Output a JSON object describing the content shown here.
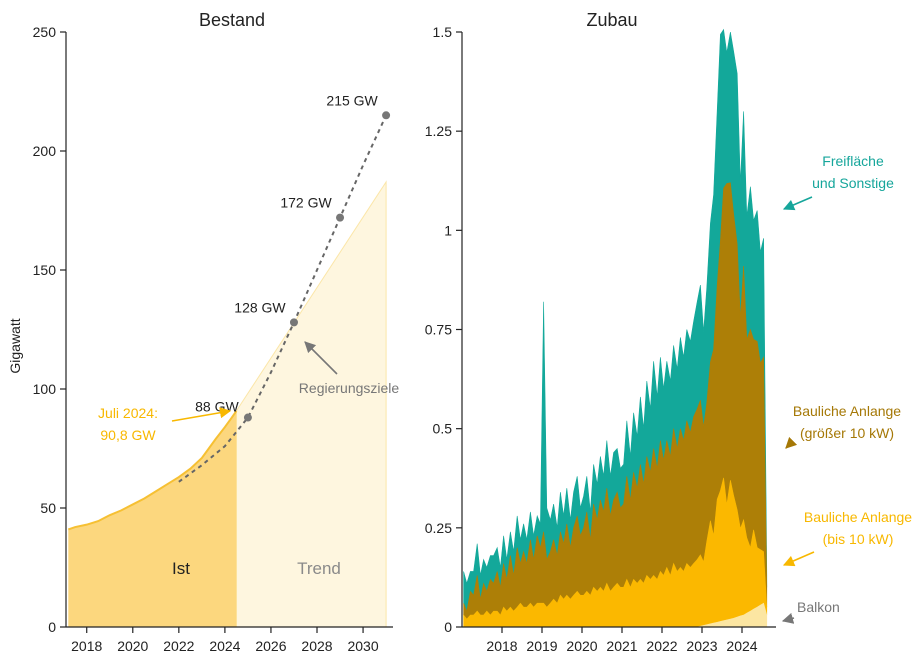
{
  "colors": {
    "ist": "#FCD77E",
    "trend": "#FEF6DF",
    "trend_edge": "#FBE6A8",
    "ist_line": "#F6C033",
    "target": "#666666",
    "freiflaeche": "#13A89A",
    "baulich_gross": "#AD7F07",
    "baulich_klein": "#FBB800",
    "balkon": "#FCE6A2",
    "ann_teal": "#16A69B",
    "ann_brown": "#A57806",
    "ann_yellow": "#F8B800",
    "ann_gray": "#777777"
  },
  "chart_data": [
    {
      "type": "area",
      "title": "Bestand",
      "ylabel": "Gigawatt",
      "xlabel": "",
      "xlim": [
        2017.1,
        2031.3
      ],
      "ylim": [
        0,
        250
      ],
      "x_ticks": [
        "2018",
        "2020",
        "2022",
        "2024",
        "2026",
        "2028",
        "2030"
      ],
      "y_ticks": [
        "0",
        "50",
        "100",
        "150",
        "200",
        "250"
      ],
      "series": [
        {
          "name": "Ist",
          "x": [
            2017.2,
            2017.5,
            2018.0,
            2018.5,
            2018.8,
            2019.0,
            2019.5,
            2020.0,
            2020.5,
            2021.0,
            2021.5,
            2022.0,
            2022.5,
            2023.0,
            2023.3,
            2023.6,
            2024.0,
            2024.3,
            2024.5
          ],
          "values": [
            41,
            42,
            43,
            44.5,
            46,
            47,
            49,
            51.5,
            54,
            57,
            60,
            63,
            66.5,
            71,
            75,
            79,
            84,
            88,
            90.8
          ]
        },
        {
          "name": "Trend",
          "x": [
            2024.5,
            2031.0
          ],
          "values": [
            90.8,
            187
          ]
        },
        {
          "name": "Regierungsziele",
          "x": [
            2022.0,
            2023.0,
            2024.0,
            2025.0,
            2026.0,
            2027.0,
            2028.0,
            2029.0,
            2030.0,
            2031.0
          ],
          "values": [
            61,
            68,
            76,
            88,
            107,
            128,
            150,
            172,
            194,
            215
          ]
        }
      ],
      "target_points": [
        {
          "x": 2025,
          "y": 88,
          "label": "88 GW"
        },
        {
          "x": 2027,
          "y": 128,
          "label": "128 GW"
        },
        {
          "x": 2029,
          "y": 172,
          "label": "172 GW"
        },
        {
          "x": 2031,
          "y": 215,
          "label": "215 GW"
        }
      ],
      "annotations": {
        "ist": "Ist",
        "trend": "Trend",
        "regierungsziele": "Regierungsziele",
        "juli_line1": "Juli 2024:",
        "juli_line2": "90,8 GW"
      }
    },
    {
      "type": "area",
      "title": "Zubau",
      "xlabel": "",
      "ylabel": "",
      "xlim": [
        2017.0,
        2024.85
      ],
      "ylim": [
        0,
        1.5
      ],
      "x_ticks": [
        "2018",
        "2019",
        "2020",
        "2021",
        "2022",
        "2023",
        "2024"
      ],
      "y_ticks": [
        "0",
        "0.25",
        "0.5",
        "0.75",
        "1",
        "1.25",
        "1.5"
      ],
      "series_stack_order": [
        "Balkon",
        "Bauliche Anlange (bis 10 kW)",
        "Bauliche Anlange (größer 10 kW)",
        "Freifläche und Sonstige"
      ],
      "x": [
        2017.04,
        2017.12,
        2017.21,
        2017.29,
        2017.38,
        2017.46,
        2017.54,
        2017.62,
        2017.71,
        2017.79,
        2017.88,
        2017.96,
        2018.04,
        2018.12,
        2018.21,
        2018.29,
        2018.38,
        2018.46,
        2018.54,
        2018.62,
        2018.71,
        2018.79,
        2018.88,
        2018.96,
        2019.04,
        2019.12,
        2019.21,
        2019.29,
        2019.38,
        2019.46,
        2019.54,
        2019.62,
        2019.71,
        2019.79,
        2019.88,
        2019.96,
        2020.04,
        2020.12,
        2020.21,
        2020.29,
        2020.38,
        2020.46,
        2020.54,
        2020.62,
        2020.71,
        2020.79,
        2020.88,
        2020.96,
        2021.04,
        2021.12,
        2021.21,
        2021.29,
        2021.38,
        2021.46,
        2021.54,
        2021.62,
        2021.71,
        2021.79,
        2021.88,
        2021.96,
        2022.04,
        2022.12,
        2022.21,
        2022.29,
        2022.38,
        2022.46,
        2022.54,
        2022.62,
        2022.71,
        2022.79,
        2022.88,
        2022.96,
        2023.04,
        2023.12,
        2023.21,
        2023.29,
        2023.38,
        2023.46,
        2023.54,
        2023.62,
        2023.71,
        2023.79,
        2023.88,
        2023.96,
        2024.04,
        2024.12,
        2024.21,
        2024.29,
        2024.38,
        2024.46,
        2024.54,
        2024.62
      ],
      "series": [
        {
          "name": "Balkon",
          "values": [
            0,
            0,
            0,
            0,
            0,
            0,
            0,
            0,
            0,
            0,
            0,
            0,
            0,
            0,
            0,
            0,
            0,
            0,
            0,
            0,
            0,
            0,
            0,
            0,
            0,
            0,
            0,
            0,
            0,
            0,
            0,
            0,
            0,
            0,
            0,
            0,
            0,
            0,
            0,
            0,
            0,
            0,
            0,
            0,
            0,
            0,
            0,
            0,
            0,
            0,
            0,
            0,
            0,
            0,
            0,
            0,
            0,
            0,
            0,
            0,
            0,
            0,
            0,
            0,
            0,
            0,
            0,
            0,
            0,
            0,
            0,
            0.002,
            0.004,
            0.006,
            0.008,
            0.01,
            0.012,
            0.014,
            0.016,
            0.018,
            0.02,
            0.022,
            0.025,
            0.028,
            0.03,
            0.035,
            0.04,
            0.045,
            0.05,
            0.055,
            0.06,
            0.03
          ]
        },
        {
          "name": "Bauliche Anlange (bis 10 kW)",
          "values": [
            0.03,
            0.02,
            0.03,
            0.03,
            0.04,
            0.03,
            0.03,
            0.04,
            0.03,
            0.04,
            0.04,
            0.03,
            0.05,
            0.04,
            0.05,
            0.04,
            0.05,
            0.06,
            0.05,
            0.05,
            0.06,
            0.05,
            0.06,
            0.06,
            0.06,
            0.05,
            0.06,
            0.07,
            0.06,
            0.08,
            0.07,
            0.08,
            0.07,
            0.08,
            0.09,
            0.08,
            0.08,
            0.09,
            0.08,
            0.1,
            0.09,
            0.1,
            0.09,
            0.11,
            0.09,
            0.1,
            0.11,
            0.1,
            0.1,
            0.12,
            0.1,
            0.12,
            0.11,
            0.12,
            0.11,
            0.13,
            0.12,
            0.13,
            0.12,
            0.14,
            0.13,
            0.15,
            0.13,
            0.16,
            0.14,
            0.15,
            0.14,
            0.16,
            0.15,
            0.16,
            0.17,
            0.18,
            0.16,
            0.21,
            0.26,
            0.22,
            0.31,
            0.33,
            0.36,
            0.29,
            0.35,
            0.31,
            0.27,
            0.22,
            0.24,
            0.19,
            0.16,
            0.2,
            0.15,
            0.14,
            0.13,
            0.02
          ]
        },
        {
          "name": "Bauliche Anlange (größer 10 kW)",
          "values": [
            0.03,
            0.02,
            0.06,
            0.05,
            0.09,
            0.04,
            0.08,
            0.05,
            0.09,
            0.07,
            0.1,
            0.07,
            0.11,
            0.08,
            0.13,
            0.09,
            0.15,
            0.1,
            0.14,
            0.11,
            0.16,
            0.12,
            0.17,
            0.14,
            0.18,
            0.12,
            0.13,
            0.15,
            0.12,
            0.16,
            0.14,
            0.18,
            0.13,
            0.17,
            0.19,
            0.15,
            0.17,
            0.2,
            0.14,
            0.21,
            0.18,
            0.22,
            0.2,
            0.24,
            0.19,
            0.22,
            0.23,
            0.2,
            0.21,
            0.26,
            0.22,
            0.27,
            0.24,
            0.29,
            0.25,
            0.3,
            0.27,
            0.32,
            0.28,
            0.33,
            0.29,
            0.32,
            0.3,
            0.34,
            0.31,
            0.35,
            0.33,
            0.36,
            0.34,
            0.37,
            0.38,
            0.39,
            0.34,
            0.35,
            0.4,
            0.47,
            0.54,
            0.63,
            0.73,
            0.81,
            0.75,
            0.71,
            0.67,
            0.53,
            0.64,
            0.5,
            0.55,
            0.48,
            0.52,
            0.47,
            0.49,
            0.05
          ]
        },
        {
          "name": "Freifläche und Sonstige",
          "values": [
            0.08,
            0.07,
            0.05,
            0.06,
            0.08,
            0.06,
            0.06,
            0.06,
            0.06,
            0.07,
            0.06,
            0.05,
            0.07,
            0.05,
            0.06,
            0.06,
            0.08,
            0.06,
            0.07,
            0.06,
            0.07,
            0.06,
            0.05,
            0.06,
            0.58,
            0.13,
            0.08,
            0.09,
            0.07,
            0.1,
            0.07,
            0.09,
            0.07,
            0.09,
            0.1,
            0.07,
            0.08,
            0.09,
            0.07,
            0.1,
            0.09,
            0.11,
            0.09,
            0.12,
            0.1,
            0.12,
            0.11,
            0.1,
            0.1,
            0.14,
            0.11,
            0.15,
            0.13,
            0.17,
            0.14,
            0.19,
            0.16,
            0.22,
            0.18,
            0.21,
            0.18,
            0.2,
            0.19,
            0.21,
            0.2,
            0.23,
            0.21,
            0.23,
            0.23,
            0.24,
            0.27,
            0.29,
            0.24,
            0.29,
            0.35,
            0.39,
            0.44,
            0.52,
            0.4,
            0.33,
            0.38,
            0.41,
            0.43,
            0.34,
            0.39,
            0.31,
            0.36,
            0.3,
            0.33,
            0.28,
            0.3,
            0.03
          ]
        }
      ],
      "annotations": {
        "frei_line1": "Freifläche",
        "frei_line2": "und Sonstige",
        "gross_line1": "Bauliche Anlange",
        "gross_line2": "(größer 10 kW)",
        "klein_line1": "Bauliche Anlange",
        "klein_line2": "(bis 10 kW)",
        "balkon": "Balkon"
      }
    }
  ]
}
